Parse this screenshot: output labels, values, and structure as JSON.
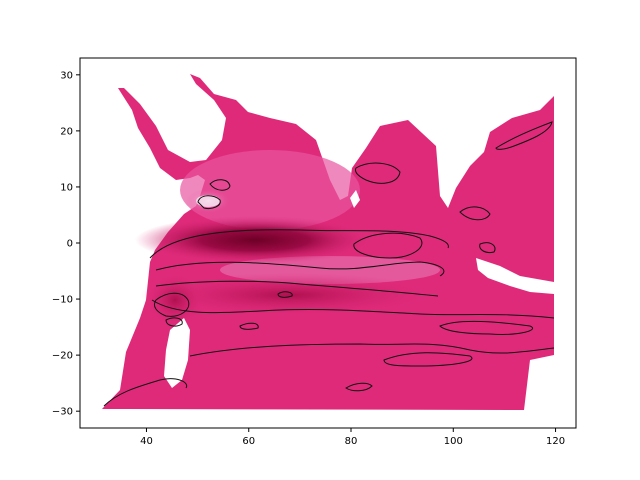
{
  "chart_data": {
    "type": "heatmap",
    "title": "",
    "xlabel": "",
    "ylabel": "",
    "xlim": [
      27,
      124
    ],
    "ylim": [
      -33,
      33
    ],
    "x_ticks": [
      40,
      60,
      80,
      100,
      120
    ],
    "y_ticks": [
      -30,
      -20,
      -10,
      0,
      10,
      20,
      30
    ],
    "x_tick_labels": [
      "40",
      "60",
      "80",
      "100",
      "120"
    ],
    "y_tick_labels": [
      "−30",
      "−20",
      "−10",
      "0",
      "10",
      "20",
      "30"
    ],
    "grid": false,
    "legend": "none",
    "colormap": [
      "#f6f4f8",
      "#d98dc2",
      "#e8559f",
      "#df2a7a",
      "#c0115a",
      "#6e0026"
    ],
    "contour_color": "#111111",
    "extent": {
      "lon": [
        31,
        121
      ],
      "lat": [
        -30,
        28
      ]
    },
    "features": [
      {
        "name": "equatorial-minimum",
        "lon": 63,
        "lat": -0.5,
        "value": "darkest"
      },
      {
        "name": "southern-band",
        "lon": [
          40,
          90
        ],
        "lat": -9,
        "value": "dark"
      },
      {
        "name": "arabian-sea-light-spot",
        "lon": 52,
        "lat": 7,
        "value": "lightest"
      }
    ]
  }
}
